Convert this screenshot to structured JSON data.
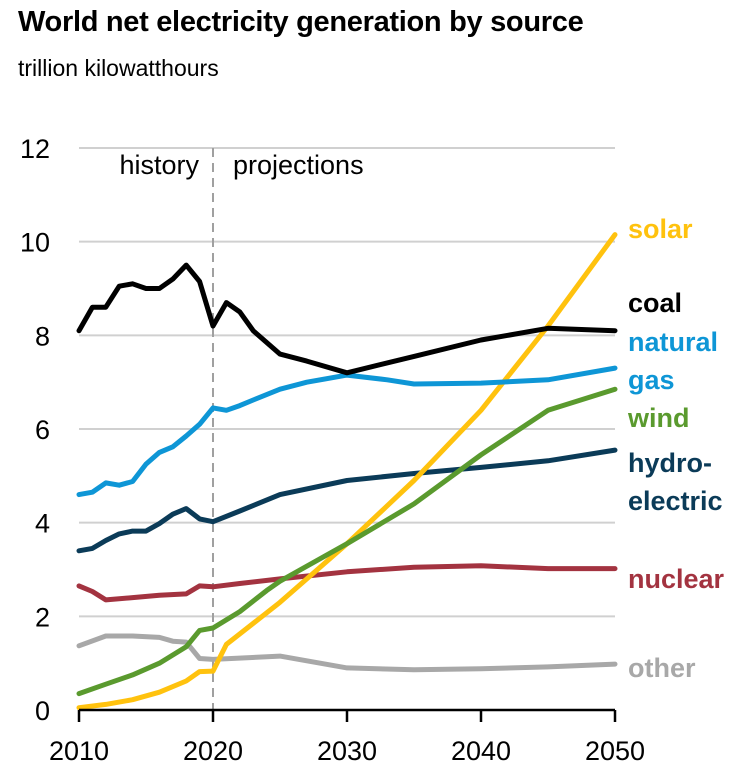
{
  "chart_data": {
    "type": "line",
    "title": "World net electricity generation by source",
    "subtitle": "trillion kilowatthours",
    "xlabel": "",
    "ylabel": "trillion kilowatthours",
    "xlim": [
      2010,
      2050
    ],
    "ylim": [
      0,
      12
    ],
    "x_ticks": [
      "2010",
      "2020",
      "2030",
      "2040",
      "2050"
    ],
    "y_ticks": [
      "0",
      "2",
      "4",
      "6",
      "8",
      "10",
      "12"
    ],
    "grid": "horizontal",
    "divider": {
      "year": 2020,
      "left_label": "history",
      "right_label": "projections"
    },
    "legend": "direct-labels-right",
    "series": [
      {
        "name": "coal",
        "label_lines": [
          "coal"
        ],
        "color": "#000000",
        "x": [
          2010,
          2011,
          2012,
          2013,
          2014,
          2015,
          2016,
          2017,
          2018,
          2019,
          2020,
          2021,
          2022,
          2023,
          2025,
          2027,
          2030,
          2035,
          2040,
          2045,
          2050
        ],
        "values": [
          8.1,
          8.6,
          8.6,
          9.05,
          9.1,
          9.0,
          9.0,
          9.2,
          9.5,
          9.15,
          8.2,
          8.7,
          8.5,
          8.1,
          7.6,
          7.45,
          7.2,
          7.55,
          7.9,
          8.15,
          8.1
        ]
      },
      {
        "name": "natural gas",
        "label_lines": [
          "natural",
          "gas"
        ],
        "color": "#0e96d6",
        "x": [
          2010,
          2011,
          2012,
          2013,
          2014,
          2015,
          2016,
          2017,
          2018,
          2019,
          2020,
          2021,
          2022,
          2023,
          2025,
          2027,
          2030,
          2033,
          2035,
          2040,
          2045,
          2050
        ],
        "values": [
          4.6,
          4.65,
          4.85,
          4.8,
          4.88,
          5.25,
          5.5,
          5.62,
          5.85,
          6.1,
          6.45,
          6.4,
          6.5,
          6.62,
          6.85,
          7.0,
          7.15,
          7.05,
          6.96,
          6.98,
          7.05,
          7.3
        ]
      },
      {
        "name": "wind",
        "label_lines": [
          "wind"
        ],
        "color": "#5a9a2e",
        "x": [
          2010,
          2012,
          2014,
          2016,
          2018,
          2019,
          2020,
          2022,
          2024,
          2025,
          2030,
          2035,
          2040,
          2045,
          2050
        ],
        "values": [
          0.35,
          0.55,
          0.75,
          1.0,
          1.35,
          1.7,
          1.75,
          2.1,
          2.55,
          2.75,
          3.55,
          4.4,
          5.45,
          6.4,
          6.85
        ]
      },
      {
        "name": "solar",
        "label_lines": [
          "solar"
        ],
        "color": "#ffc20e",
        "x": [
          2010,
          2012,
          2014,
          2016,
          2018,
          2019,
          2020,
          2021,
          2023,
          2025,
          2030,
          2035,
          2040,
          2045,
          2050
        ],
        "values": [
          0.05,
          0.12,
          0.22,
          0.38,
          0.62,
          0.82,
          0.83,
          1.4,
          1.85,
          2.3,
          3.55,
          4.9,
          6.4,
          8.2,
          10.15
        ]
      },
      {
        "name": "hydroelectric",
        "label_lines": [
          "hydro-",
          "electric"
        ],
        "color": "#0b3b58",
        "x": [
          2010,
          2011,
          2012,
          2013,
          2014,
          2015,
          2016,
          2017,
          2018,
          2019,
          2020,
          2022,
          2025,
          2030,
          2035,
          2040,
          2045,
          2050
        ],
        "values": [
          3.4,
          3.45,
          3.62,
          3.76,
          3.82,
          3.82,
          3.98,
          4.18,
          4.3,
          4.08,
          4.02,
          4.25,
          4.6,
          4.9,
          5.05,
          5.18,
          5.32,
          5.55
        ]
      },
      {
        "name": "nuclear",
        "label_lines": [
          "nuclear"
        ],
        "color": "#a33340",
        "x": [
          2010,
          2011,
          2012,
          2014,
          2016,
          2018,
          2019,
          2020,
          2022,
          2025,
          2030,
          2035,
          2040,
          2045,
          2050
        ],
        "values": [
          2.65,
          2.53,
          2.35,
          2.4,
          2.45,
          2.48,
          2.65,
          2.63,
          2.7,
          2.8,
          2.95,
          3.05,
          3.08,
          3.02,
          3.02
        ]
      },
      {
        "name": "other",
        "label_lines": [
          "other"
        ],
        "color": "#a8a8a8",
        "x": [
          2010,
          2012,
          2014,
          2016,
          2017,
          2018,
          2019,
          2020,
          2025,
          2030,
          2035,
          2040,
          2045,
          2050
        ],
        "values": [
          1.37,
          1.58,
          1.58,
          1.55,
          1.47,
          1.45,
          1.1,
          1.08,
          1.15,
          0.9,
          0.86,
          0.88,
          0.92,
          0.98
        ]
      }
    ]
  }
}
